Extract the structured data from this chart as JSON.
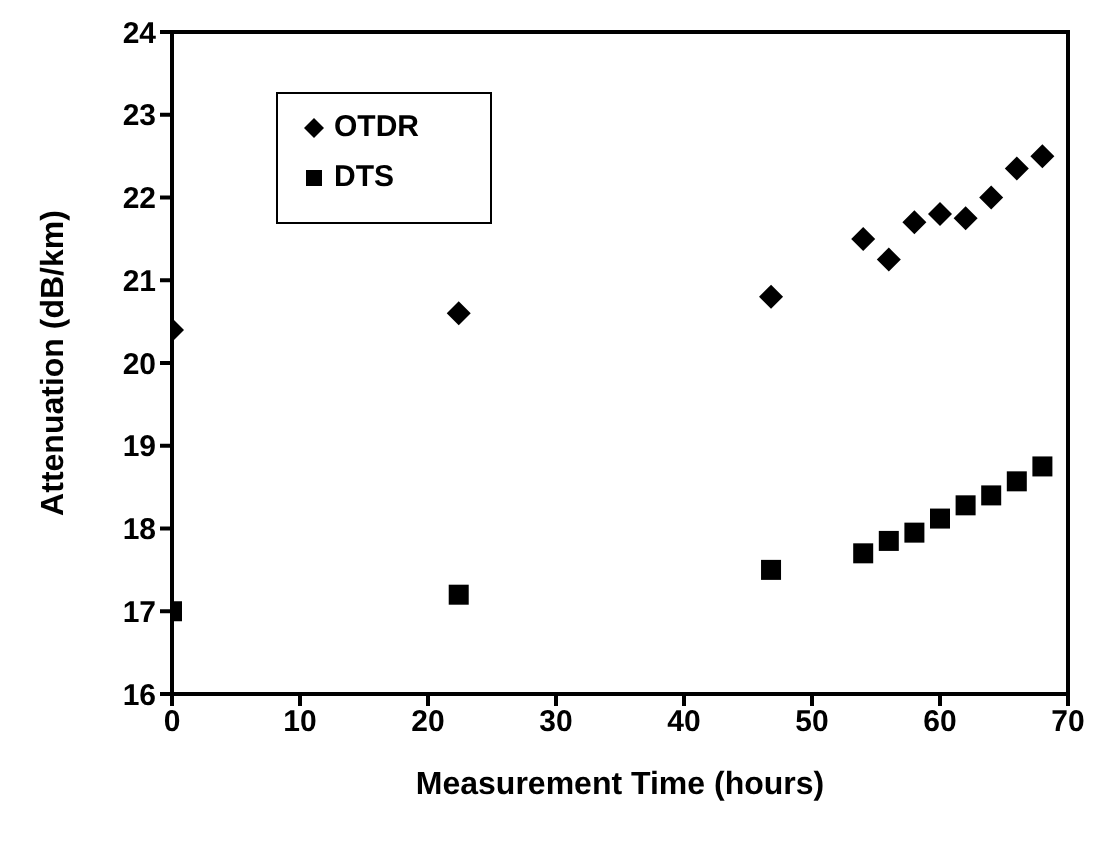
{
  "chart_data": {
    "type": "scatter",
    "xlabel": "Measurement Time (hours)",
    "ylabel": "Attenuation (dB/km)",
    "series": [
      {
        "name": "OTDR",
        "color": "#000000",
        "marker": "diamond",
        "x": [
          0,
          22.4,
          46.8,
          54,
          56,
          58,
          60,
          62,
          64,
          66,
          68
        ],
        "values": [
          20.4,
          20.6,
          20.8,
          21.5,
          21.25,
          21.7,
          21.8,
          21.75,
          22.0,
          22.35,
          22.5
        ]
      },
      {
        "name": "DTS",
        "color": "#000000",
        "marker": "square",
        "x": [
          0,
          22.4,
          46.8,
          54,
          56,
          58,
          60,
          62,
          64,
          66,
          68
        ],
        "values": [
          17.0,
          17.2,
          17.5,
          17.7,
          17.85,
          17.95,
          18.12,
          18.28,
          18.4,
          18.57,
          18.75
        ]
      }
    ],
    "xlim": [
      0,
      70
    ],
    "xticks": [
      0,
      10,
      20,
      30,
      40,
      50,
      60,
      70
    ],
    "ylim": [
      16,
      24
    ],
    "yticks": [
      16,
      17,
      18,
      19,
      20,
      21,
      22,
      23,
      24
    ],
    "grid": false,
    "legend": "top left"
  }
}
